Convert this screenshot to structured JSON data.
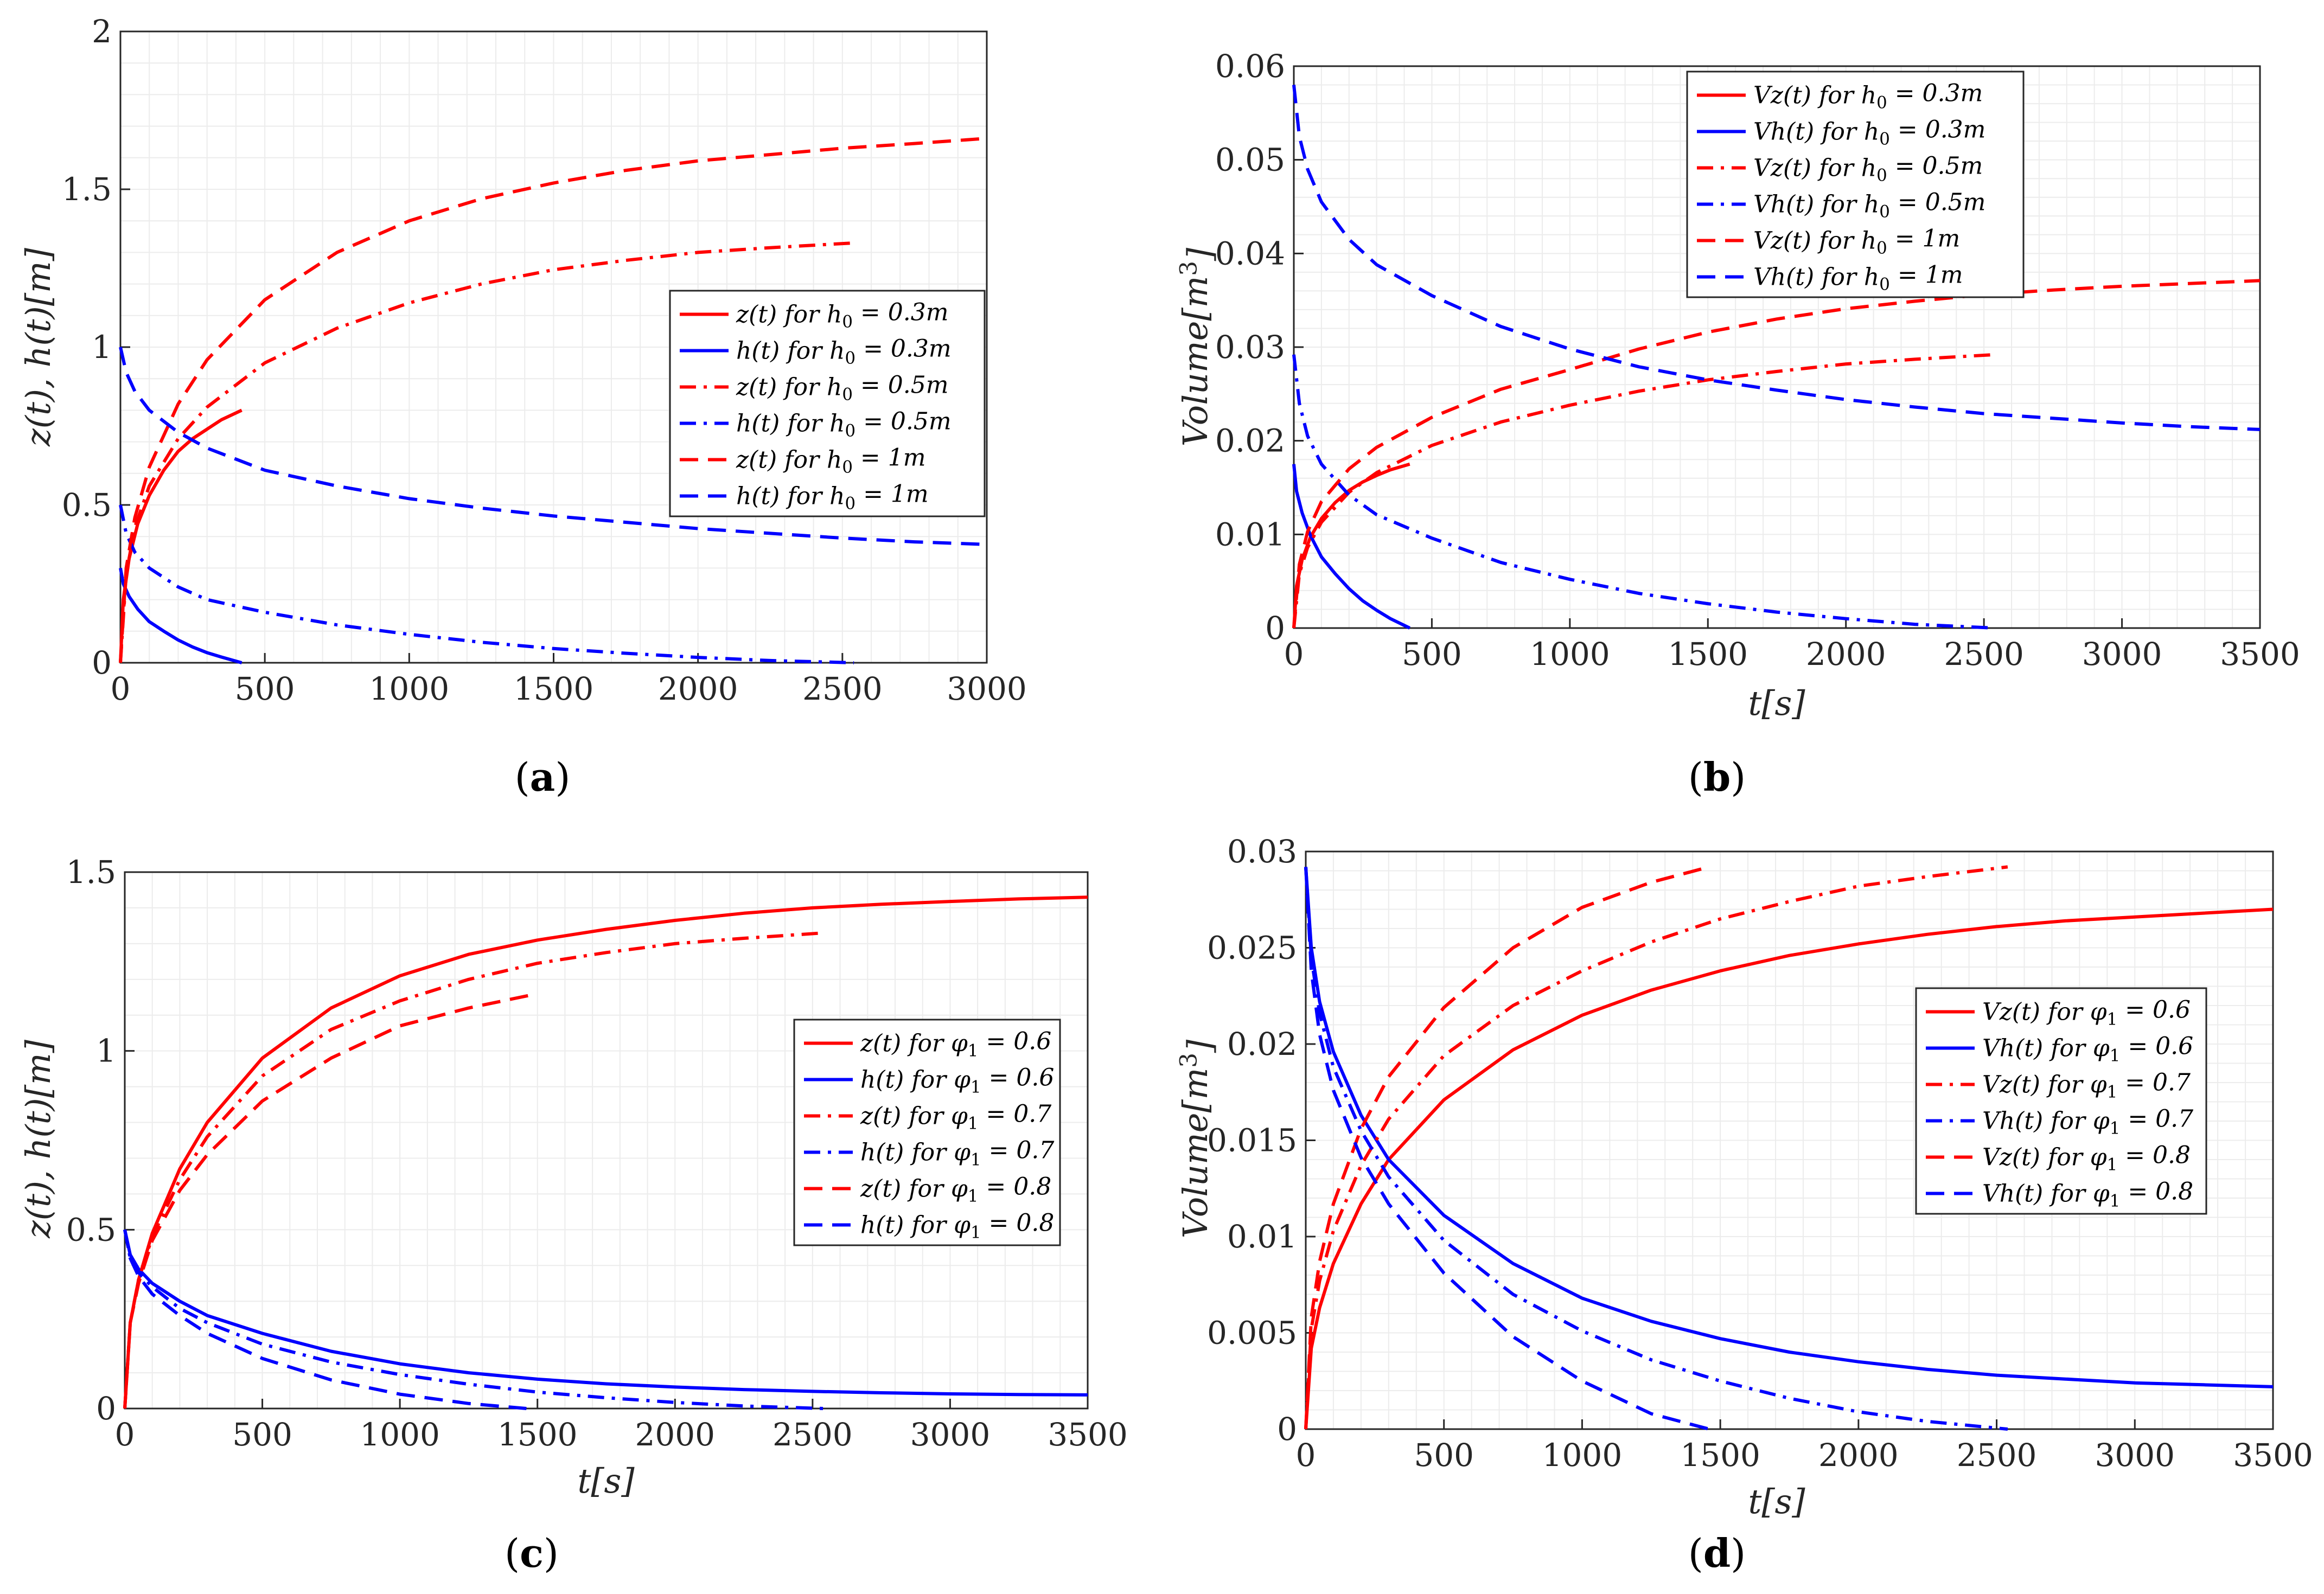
{
  "styles": {
    "red": "#ff0000",
    "blue": "#0000ff",
    "grid_color": "#ececec",
    "axis_color": "#262626"
  },
  "chart_data": [
    {
      "id": "a",
      "type": "line",
      "caption": {
        "open": "(",
        "letter": "a",
        "close": ")"
      },
      "xlabel": "",
      "ylabel": "z(t), h(t)[m]",
      "xlim": [
        0,
        3000
      ],
      "ylim": [
        0,
        2
      ],
      "xticks": [
        0,
        500,
        1000,
        1500,
        2000,
        2500,
        3000
      ],
      "yticks": [
        0,
        0.5,
        1,
        1.5,
        2
      ],
      "ytick_labels": [
        "0",
        "0.5",
        "1",
        "1.5",
        "2"
      ],
      "legend_position": "right-middle",
      "series": [
        {
          "name": "z(t) for h₀ = 0.3m",
          "color": "red",
          "dash": "solid",
          "x": [
            0,
            10,
            30,
            60,
            100,
            150,
            200,
            250,
            300,
            350,
            420
          ],
          "y": [
            0,
            0.2,
            0.33,
            0.44,
            0.53,
            0.61,
            0.67,
            0.71,
            0.74,
            0.77,
            0.8
          ]
        },
        {
          "name": "h(t) for h₀ = 0.3m",
          "color": "blue",
          "dash": "solid",
          "x": [
            0,
            10,
            30,
            60,
            100,
            150,
            200,
            250,
            300,
            350,
            420
          ],
          "y": [
            0.3,
            0.25,
            0.21,
            0.17,
            0.13,
            0.1,
            0.072,
            0.05,
            0.032,
            0.018,
            0
          ]
        },
        {
          "name": "z(t) for h₀ = 0.5m",
          "color": "red",
          "dash": "dashdot",
          "x": [
            0,
            20,
            50,
            100,
            200,
            300,
            500,
            750,
            1000,
            1250,
            1500,
            1750,
            2000,
            2250,
            2540
          ],
          "y": [
            0,
            0.28,
            0.43,
            0.56,
            0.71,
            0.81,
            0.95,
            1.06,
            1.14,
            1.2,
            1.245,
            1.275,
            1.3,
            1.315,
            1.33
          ]
        },
        {
          "name": "h(t) for h₀ = 0.5m",
          "color": "blue",
          "dash": "dashdot",
          "x": [
            0,
            20,
            50,
            100,
            200,
            300,
            500,
            750,
            1000,
            1250,
            1500,
            1750,
            2000,
            2250,
            2540
          ],
          "y": [
            0.5,
            0.41,
            0.35,
            0.3,
            0.24,
            0.2,
            0.16,
            0.12,
            0.09,
            0.065,
            0.045,
            0.03,
            0.017,
            0.007,
            0
          ]
        },
        {
          "name": "z(t) for h₀ = 1m",
          "color": "red",
          "dash": "dashed",
          "x": [
            0,
            20,
            50,
            100,
            200,
            300,
            500,
            750,
            1000,
            1250,
            1500,
            1750,
            2000,
            2250,
            2500,
            2750,
            2980
          ],
          "y": [
            0,
            0.3,
            0.46,
            0.62,
            0.82,
            0.96,
            1.15,
            1.3,
            1.4,
            1.47,
            1.52,
            1.56,
            1.59,
            1.61,
            1.63,
            1.645,
            1.66
          ]
        },
        {
          "name": "h(t) for h₀ = 1m",
          "color": "blue",
          "dash": "dashed",
          "x": [
            0,
            20,
            50,
            100,
            200,
            300,
            500,
            750,
            1000,
            1250,
            1500,
            1750,
            2000,
            2250,
            2500,
            2750,
            3000
          ],
          "y": [
            1,
            0.92,
            0.86,
            0.8,
            0.73,
            0.68,
            0.61,
            0.56,
            0.52,
            0.49,
            0.465,
            0.445,
            0.425,
            0.41,
            0.395,
            0.383,
            0.375
          ]
        }
      ]
    },
    {
      "id": "b",
      "type": "line",
      "caption": {
        "open": "(",
        "letter": "b",
        "close": ")"
      },
      "xlabel": "t[s]",
      "ylabel": "Volume[m³]",
      "xlim": [
        0,
        3500
      ],
      "ylim": [
        0,
        0.06
      ],
      "xticks": [
        0,
        500,
        1000,
        1500,
        2000,
        2500,
        3000,
        3500
      ],
      "yticks": [
        0,
        0.01,
        0.02,
        0.03,
        0.04,
        0.05,
        0.06
      ],
      "ytick_labels": [
        "0",
        "0.01",
        "0.02",
        "0.03",
        "0.04",
        "0.05",
        "0.06"
      ],
      "legend_position": "top-middle",
      "series": [
        {
          "name": "Vz(t) for h₀ = 0.3m",
          "color": "red",
          "dash": "solid",
          "x": [
            0,
            10,
            30,
            60,
            100,
            150,
            200,
            250,
            300,
            350,
            420
          ],
          "y": [
            0,
            0.0045,
            0.0073,
            0.0097,
            0.0117,
            0.0134,
            0.0147,
            0.0156,
            0.0163,
            0.0169,
            0.0175
          ]
        },
        {
          "name": "Vh(t) for h₀ = 0.3m",
          "color": "blue",
          "dash": "solid",
          "x": [
            0,
            10,
            30,
            60,
            100,
            150,
            200,
            250,
            300,
            350,
            420
          ],
          "y": [
            0.0175,
            0.0146,
            0.0123,
            0.0099,
            0.0076,
            0.0058,
            0.0042,
            0.0029,
            0.0019,
            0.001,
            0
          ]
        },
        {
          "name": "Vz(t) for h₀ = 0.5m",
          "color": "red",
          "dash": "dashdot",
          "x": [
            0,
            20,
            50,
            100,
            200,
            300,
            500,
            750,
            1000,
            1250,
            1500,
            1750,
            2000,
            2250,
            2540
          ],
          "y": [
            0,
            0.0058,
            0.0086,
            0.0113,
            0.0145,
            0.0166,
            0.0195,
            0.022,
            0.0238,
            0.0253,
            0.0265,
            0.0274,
            0.0282,
            0.0287,
            0.0292
          ]
        },
        {
          "name": "Vh(t) for h₀ = 0.5m",
          "color": "blue",
          "dash": "dashdot",
          "x": [
            0,
            20,
            50,
            100,
            200,
            300,
            500,
            750,
            1000,
            1250,
            1500,
            1750,
            2000,
            2250,
            2540
          ],
          "y": [
            0.0292,
            0.024,
            0.0205,
            0.0175,
            0.0142,
            0.0121,
            0.0096,
            0.007,
            0.0052,
            0.0037,
            0.0026,
            0.0017,
            0.001,
            0.0004,
            0
          ]
        },
        {
          "name": "Vz(t) for h₀ = 1m",
          "color": "red",
          "dash": "dashed",
          "x": [
            0,
            20,
            50,
            100,
            200,
            300,
            500,
            750,
            1000,
            1250,
            1500,
            1750,
            2000,
            2250,
            2500,
            2750,
            3000,
            3250,
            3500
          ],
          "y": [
            0,
            0.0068,
            0.0103,
            0.0135,
            0.017,
            0.0193,
            0.0225,
            0.0255,
            0.0276,
            0.0298,
            0.0316,
            0.033,
            0.0341,
            0.0349,
            0.0356,
            0.0361,
            0.0365,
            0.0368,
            0.0371
          ]
        },
        {
          "name": "Vh(t) for h₀ = 1m",
          "color": "blue",
          "dash": "dashed",
          "x": [
            0,
            20,
            50,
            100,
            200,
            300,
            500,
            750,
            1000,
            1250,
            1500,
            1750,
            2000,
            2250,
            2500,
            2750,
            3000,
            3250,
            3500
          ],
          "y": [
            0.058,
            0.0525,
            0.049,
            0.0455,
            0.0415,
            0.0388,
            0.0355,
            0.0322,
            0.0298,
            0.0279,
            0.0265,
            0.0254,
            0.0244,
            0.0236,
            0.0229,
            0.0224,
            0.0219,
            0.0215,
            0.0212
          ]
        }
      ]
    },
    {
      "id": "c",
      "type": "line",
      "caption": {
        "open": "(",
        "letter": "c",
        "close": ")"
      },
      "xlabel": "t[s]",
      "ylabel": "z(t), h(t)[m]",
      "xlim": [
        0,
        3500
      ],
      "ylim": [
        0,
        1.5
      ],
      "xticks": [
        0,
        500,
        1000,
        1500,
        2000,
        2500,
        3000,
        3500
      ],
      "yticks": [
        0,
        0.5,
        1,
        1.5
      ],
      "ytick_labels": [
        "0",
        "0.5",
        "1",
        "1.5"
      ],
      "legend_position": "right-middle",
      "series": [
        {
          "name": "z(t) for φ₁ = 0.6",
          "color": "red",
          "dash": "solid",
          "x": [
            0,
            20,
            50,
            100,
            200,
            300,
            500,
            750,
            1000,
            1250,
            1500,
            1750,
            2000,
            2250,
            2500,
            2750,
            3000,
            3250,
            3500
          ],
          "y": [
            0,
            0.24,
            0.36,
            0.49,
            0.67,
            0.8,
            0.98,
            1.12,
            1.21,
            1.27,
            1.31,
            1.34,
            1.365,
            1.385,
            1.4,
            1.41,
            1.418,
            1.425,
            1.43
          ]
        },
        {
          "name": "h(t) for φ₁ = 0.6",
          "color": "blue",
          "dash": "solid",
          "x": [
            0,
            20,
            50,
            100,
            200,
            300,
            500,
            750,
            1000,
            1250,
            1500,
            1750,
            2000,
            2250,
            2500,
            2750,
            3000,
            3250,
            3500
          ],
          "y": [
            0.5,
            0.43,
            0.39,
            0.35,
            0.3,
            0.26,
            0.21,
            0.16,
            0.125,
            0.1,
            0.082,
            0.069,
            0.06,
            0.053,
            0.048,
            0.044,
            0.041,
            0.039,
            0.038
          ]
        },
        {
          "name": "z(t) for φ₁ = 0.7",
          "color": "red",
          "dash": "dashdot",
          "x": [
            0,
            20,
            50,
            100,
            200,
            300,
            500,
            750,
            1000,
            1250,
            1500,
            1750,
            2000,
            2250,
            2540
          ],
          "y": [
            0,
            0.24,
            0.36,
            0.48,
            0.64,
            0.76,
            0.93,
            1.06,
            1.14,
            1.2,
            1.245,
            1.275,
            1.3,
            1.315,
            1.33
          ]
        },
        {
          "name": "h(t) for φ₁ = 0.7",
          "color": "blue",
          "dash": "dashdot",
          "x": [
            0,
            20,
            50,
            100,
            200,
            300,
            500,
            750,
            1000,
            1250,
            1500,
            1750,
            2000,
            2250,
            2540
          ],
          "y": [
            0.5,
            0.42,
            0.38,
            0.34,
            0.28,
            0.24,
            0.18,
            0.13,
            0.095,
            0.068,
            0.046,
            0.03,
            0.017,
            0.007,
            0
          ]
        },
        {
          "name": "z(t) for φ₁ = 0.8",
          "color": "red",
          "dash": "dashed",
          "x": [
            0,
            20,
            50,
            100,
            200,
            300,
            500,
            750,
            1000,
            1250,
            1500
          ],
          "y": [
            0,
            0.24,
            0.35,
            0.47,
            0.61,
            0.71,
            0.86,
            0.98,
            1.07,
            1.12,
            1.16
          ]
        },
        {
          "name": "h(t) for φ₁ = 0.8",
          "color": "blue",
          "dash": "dashed",
          "x": [
            0,
            20,
            50,
            100,
            200,
            300,
            500,
            750,
            1000,
            1250,
            1460
          ],
          "y": [
            0.5,
            0.42,
            0.37,
            0.32,
            0.26,
            0.21,
            0.14,
            0.08,
            0.04,
            0.014,
            0
          ]
        }
      ]
    },
    {
      "id": "d",
      "type": "line",
      "caption": {
        "open": "(",
        "letter": "d",
        "close": ")"
      },
      "xlabel": "t[s]",
      "ylabel": "Volume[m³]",
      "xlim": [
        0,
        3500
      ],
      "ylim": [
        0,
        0.03
      ],
      "xticks": [
        0,
        500,
        1000,
        1500,
        2000,
        2500,
        3000,
        3500
      ],
      "yticks": [
        0,
        0.005,
        0.01,
        0.015,
        0.02,
        0.025,
        0.03
      ],
      "ytick_labels": [
        "0",
        "0.005",
        "0.01",
        "0.015",
        "0.02",
        "0.025",
        "0.03"
      ],
      "legend_position": "right-middle",
      "series": [
        {
          "name": "Vz(t) for φ₁ = 0.6",
          "color": "red",
          "dash": "solid",
          "x": [
            0,
            20,
            50,
            100,
            200,
            300,
            500,
            750,
            1000,
            1250,
            1500,
            1750,
            2000,
            2250,
            2500,
            2750,
            3000,
            3250,
            3500
          ],
          "y": [
            0,
            0.0042,
            0.0063,
            0.0086,
            0.0117,
            0.014,
            0.0171,
            0.0197,
            0.0215,
            0.0228,
            0.0238,
            0.0246,
            0.0252,
            0.0257,
            0.0261,
            0.0264,
            0.0266,
            0.0268,
            0.027
          ]
        },
        {
          "name": "Vh(t) for φ₁ = 0.6",
          "color": "blue",
          "dash": "solid",
          "x": [
            0,
            20,
            50,
            100,
            200,
            300,
            500,
            750,
            1000,
            1250,
            1500,
            1750,
            2000,
            2250,
            2500,
            2750,
            3000,
            3250,
            3500
          ],
          "y": [
            0.0292,
            0.025,
            0.0222,
            0.0196,
            0.0163,
            0.014,
            0.0111,
            0.0086,
            0.0068,
            0.0056,
            0.0047,
            0.004,
            0.0035,
            0.0031,
            0.0028,
            0.0026,
            0.0024,
            0.0023,
            0.0022
          ]
        },
        {
          "name": "Vz(t) for φ₁ = 0.7",
          "color": "red",
          "dash": "dashdot",
          "x": [
            0,
            20,
            50,
            100,
            200,
            300,
            500,
            750,
            1000,
            1250,
            1500,
            1750,
            2000,
            2250,
            2540
          ],
          "y": [
            0,
            0.0052,
            0.0077,
            0.0103,
            0.0137,
            0.0161,
            0.0194,
            0.022,
            0.0238,
            0.0253,
            0.0265,
            0.0274,
            0.0282,
            0.0287,
            0.0292
          ]
        },
        {
          "name": "Vh(t) for φ₁ = 0.7",
          "color": "blue",
          "dash": "dashdot",
          "x": [
            0,
            20,
            50,
            100,
            200,
            300,
            500,
            750,
            1000,
            1250,
            1500,
            1750,
            2000,
            2250,
            2540
          ],
          "y": [
            0.0292,
            0.0245,
            0.0216,
            0.0188,
            0.0155,
            0.0131,
            0.0098,
            0.007,
            0.0051,
            0.0036,
            0.0025,
            0.0016,
            0.0009,
            0.0004,
            0
          ]
        },
        {
          "name": "Vz(t) for φ₁ = 0.8",
          "color": "red",
          "dash": "dashed",
          "x": [
            0,
            20,
            50,
            100,
            200,
            300,
            500,
            750,
            1000,
            1250,
            1460
          ],
          "y": [
            0,
            0.0058,
            0.0087,
            0.0117,
            0.0156,
            0.0183,
            0.0219,
            0.025,
            0.0271,
            0.0284,
            0.0292
          ]
        },
        {
          "name": "Vh(t) for φ₁ = 0.8",
          "color": "blue",
          "dash": "dashed",
          "x": [
            0,
            20,
            50,
            100,
            200,
            300,
            500,
            750,
            1000,
            1250,
            1460
          ],
          "y": [
            0.0292,
            0.0238,
            0.0205,
            0.0176,
            0.0141,
            0.0117,
            0.0081,
            0.0048,
            0.0025,
            0.0008,
            0
          ]
        }
      ]
    }
  ]
}
